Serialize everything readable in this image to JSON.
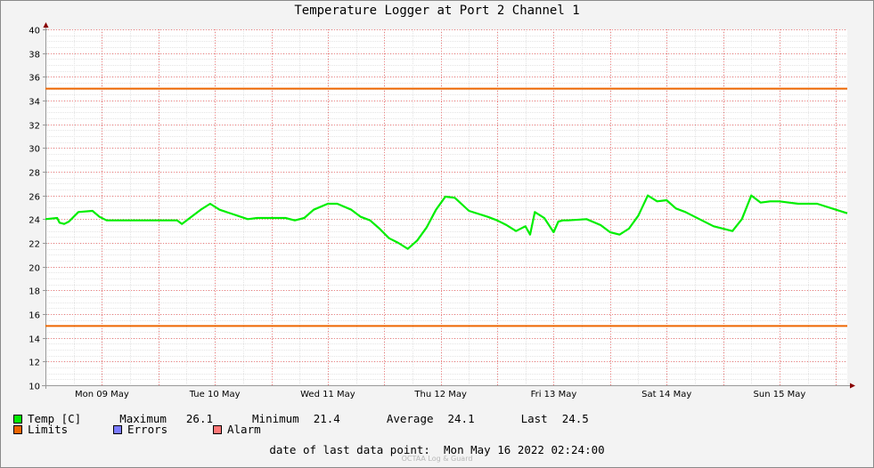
{
  "chart_data": {
    "type": "line",
    "title": "Temperature Logger at Port 2 Channel 1",
    "x_tick_labels": [
      "Mon 09 May",
      "Tue 10 May",
      "Wed 11 May",
      "Thu 12 May",
      "Fri 13 May",
      "Sat 14 May",
      "Sun 15 May"
    ],
    "x_range": [
      "2022-05-09 00:00",
      "2022-05-16 02:24"
    ],
    "ylim": [
      10,
      40
    ],
    "y_ticks": [
      10,
      12,
      14,
      16,
      18,
      20,
      22,
      24,
      26,
      28,
      30,
      32,
      34,
      36,
      38,
      40
    ],
    "grid": true,
    "series": [
      {
        "name": "Temp [C]",
        "color": "#00ee00",
        "x": [
          "2022-05-09 00:00",
          "2022-05-09 02:30",
          "2022-05-09 03:00",
          "2022-05-09 04:00",
          "2022-05-09 05:00",
          "2022-05-09 07:00",
          "2022-05-09 10:00",
          "2022-05-09 11:30",
          "2022-05-09 13:00",
          "2022-05-09 16:00",
          "2022-05-09 20:00",
          "2022-05-10 00:00",
          "2022-05-10 04:00",
          "2022-05-10 05:00",
          "2022-05-10 07:00",
          "2022-05-10 09:00",
          "2022-05-10 11:00",
          "2022-05-10 13:00",
          "2022-05-10 16:00",
          "2022-05-10 19:00",
          "2022-05-10 21:00",
          "2022-05-11 00:00",
          "2022-05-11 03:00",
          "2022-05-11 05:00",
          "2022-05-11 07:00",
          "2022-05-11 09:00",
          "2022-05-11 12:00",
          "2022-05-11 14:00",
          "2022-05-11 17:00",
          "2022-05-11 19:00",
          "2022-05-11 21:00",
          "2022-05-11 23:00",
          "2022-05-12 01:00",
          "2022-05-12 03:00",
          "2022-05-12 05:00",
          "2022-05-12 07:00",
          "2022-05-12 09:00",
          "2022-05-12 11:00",
          "2022-05-12 13:00",
          "2022-05-12 15:00",
          "2022-05-12 18:00",
          "2022-05-12 22:00",
          "2022-05-13 00:00",
          "2022-05-13 02:00",
          "2022-05-13 04:00",
          "2022-05-13 06:00",
          "2022-05-13 07:00",
          "2022-05-13 08:00",
          "2022-05-13 10:00",
          "2022-05-13 12:00",
          "2022-05-13 13:00",
          "2022-05-13 14:00",
          "2022-05-13 15:00",
          "2022-05-13 19:00",
          "2022-05-13 22:00",
          "2022-05-14 00:00",
          "2022-05-14 02:00",
          "2022-05-14 04:00",
          "2022-05-14 06:00",
          "2022-05-14 08:00",
          "2022-05-14 10:00",
          "2022-05-14 12:00",
          "2022-05-14 14:00",
          "2022-05-14 16:00",
          "2022-05-14 18:00",
          "2022-05-14 22:00",
          "2022-05-15 02:00",
          "2022-05-15 04:00",
          "2022-05-15 06:00",
          "2022-05-15 08:00",
          "2022-05-15 10:00",
          "2022-05-15 12:00",
          "2022-05-15 14:00",
          "2022-05-15 16:00",
          "2022-05-15 20:00",
          "2022-05-16 00:00",
          "2022-05-16 02:24"
        ],
        "values": [
          24.0,
          24.1,
          23.7,
          23.6,
          23.8,
          24.6,
          24.7,
          24.2,
          23.9,
          23.9,
          23.9,
          23.9,
          23.9,
          23.6,
          24.2,
          24.8,
          25.3,
          24.8,
          24.4,
          24.0,
          24.1,
          24.1,
          24.1,
          23.9,
          24.1,
          24.8,
          25.3,
          25.3,
          24.8,
          24.2,
          23.9,
          23.2,
          22.4,
          22.0,
          21.5,
          22.2,
          23.3,
          24.8,
          25.9,
          25.8,
          24.7,
          24.2,
          23.9,
          23.5,
          23.0,
          23.4,
          22.7,
          24.6,
          24.1,
          22.9,
          23.8,
          23.9,
          23.9,
          24.0,
          23.5,
          22.9,
          22.7,
          23.2,
          24.3,
          26.0,
          25.5,
          25.6,
          24.9,
          24.6,
          24.2,
          23.4,
          23.0,
          24.0,
          26.0,
          25.4,
          25.5,
          25.5,
          25.4,
          25.3,
          25.3,
          24.8,
          24.5
        ]
      }
    ],
    "limits": {
      "name": "Limits",
      "color": "#ee6600",
      "values": [
        35,
        15
      ]
    },
    "legend": {
      "placement": "bottom-left",
      "items": [
        {
          "label": "Temp [C]",
          "color": "#00ee00"
        },
        {
          "label": "Limits",
          "color": "#ee6600"
        },
        {
          "label": "Errors",
          "color": "#7b7bff"
        },
        {
          "label": "Alarm",
          "color": "#ff7777"
        }
      ]
    },
    "stats": {
      "maximum_label": "Maximum",
      "maximum": "26.1",
      "minimum_label": "Minimum",
      "minimum": "21.4",
      "average_label": "Average",
      "average": "24.1",
      "last_label": "Last",
      "last": "24.5"
    }
  },
  "footer": {
    "date_label": "date of last data point:",
    "date_value": "Mon May 16 2022 02:24:00",
    "watermark": "OCTAA Log & Guard"
  },
  "colors": {
    "background": "#f3f3f3",
    "plot_background": "#ffffff",
    "minor_grid": "#e4e4e4",
    "major_grid": "#f08080",
    "axis": "#999999",
    "arrow": "#880000"
  }
}
